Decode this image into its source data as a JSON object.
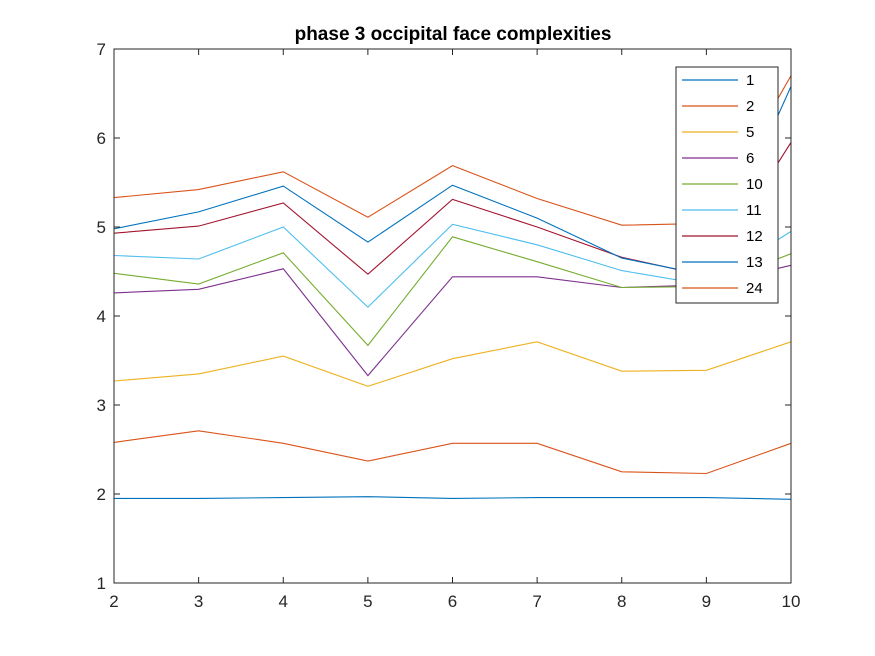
{
  "chart_data": {
    "type": "line",
    "title": "phase 3 occipital face complexities",
    "xlabel": "",
    "ylabel": "",
    "xlim": [
      2,
      10
    ],
    "ylim": [
      1,
      7
    ],
    "x": [
      2,
      3,
      4,
      5,
      6,
      7,
      8,
      9,
      10
    ],
    "xticks": [
      "2",
      "3",
      "4",
      "5",
      "6",
      "7",
      "8",
      "9",
      "10"
    ],
    "yticks": [
      "1",
      "2",
      "3",
      "4",
      "5",
      "6",
      "7"
    ],
    "grid": false,
    "legend_position": "top-right",
    "series": [
      {
        "name": "1",
        "color": "#0072BD",
        "values": [
          1.95,
          1.95,
          1.96,
          1.97,
          1.95,
          1.96,
          1.96,
          1.96,
          1.94
        ]
      },
      {
        "name": "2",
        "color": "#D95319",
        "values": [
          2.58,
          2.71,
          2.57,
          2.37,
          2.57,
          2.57,
          2.25,
          2.23,
          2.57
        ]
      },
      {
        "name": "5",
        "color": "#EDB120",
        "values": [
          3.27,
          3.35,
          3.55,
          3.21,
          3.52,
          3.71,
          3.38,
          3.39,
          3.71
        ]
      },
      {
        "name": "6",
        "color": "#7E2F8E",
        "values": [
          4.26,
          4.3,
          4.53,
          3.33,
          4.44,
          4.44,
          4.32,
          4.35,
          4.57
        ]
      },
      {
        "name": "10",
        "color": "#77AC30",
        "values": [
          4.48,
          4.36,
          4.71,
          3.67,
          4.89,
          4.61,
          4.32,
          4.33,
          4.7
        ]
      },
      {
        "name": "11",
        "color": "#4DBEEE",
        "values": [
          4.68,
          4.64,
          5.0,
          4.1,
          5.03,
          4.8,
          4.51,
          4.35,
          4.95
        ]
      },
      {
        "name": "12",
        "color": "#A2142F",
        "values": [
          4.93,
          5.01,
          5.27,
          4.47,
          5.31,
          5.0,
          4.66,
          4.45,
          5.95
        ]
      },
      {
        "name": "13",
        "color": "#0072BD",
        "values": [
          4.98,
          5.17,
          5.46,
          4.83,
          5.47,
          5.1,
          4.65,
          4.46,
          6.58
        ]
      },
      {
        "name": "24",
        "color": "#D95319",
        "values": [
          5.33,
          5.42,
          5.62,
          5.11,
          5.69,
          5.32,
          5.02,
          5.04,
          6.7
        ]
      }
    ]
  }
}
